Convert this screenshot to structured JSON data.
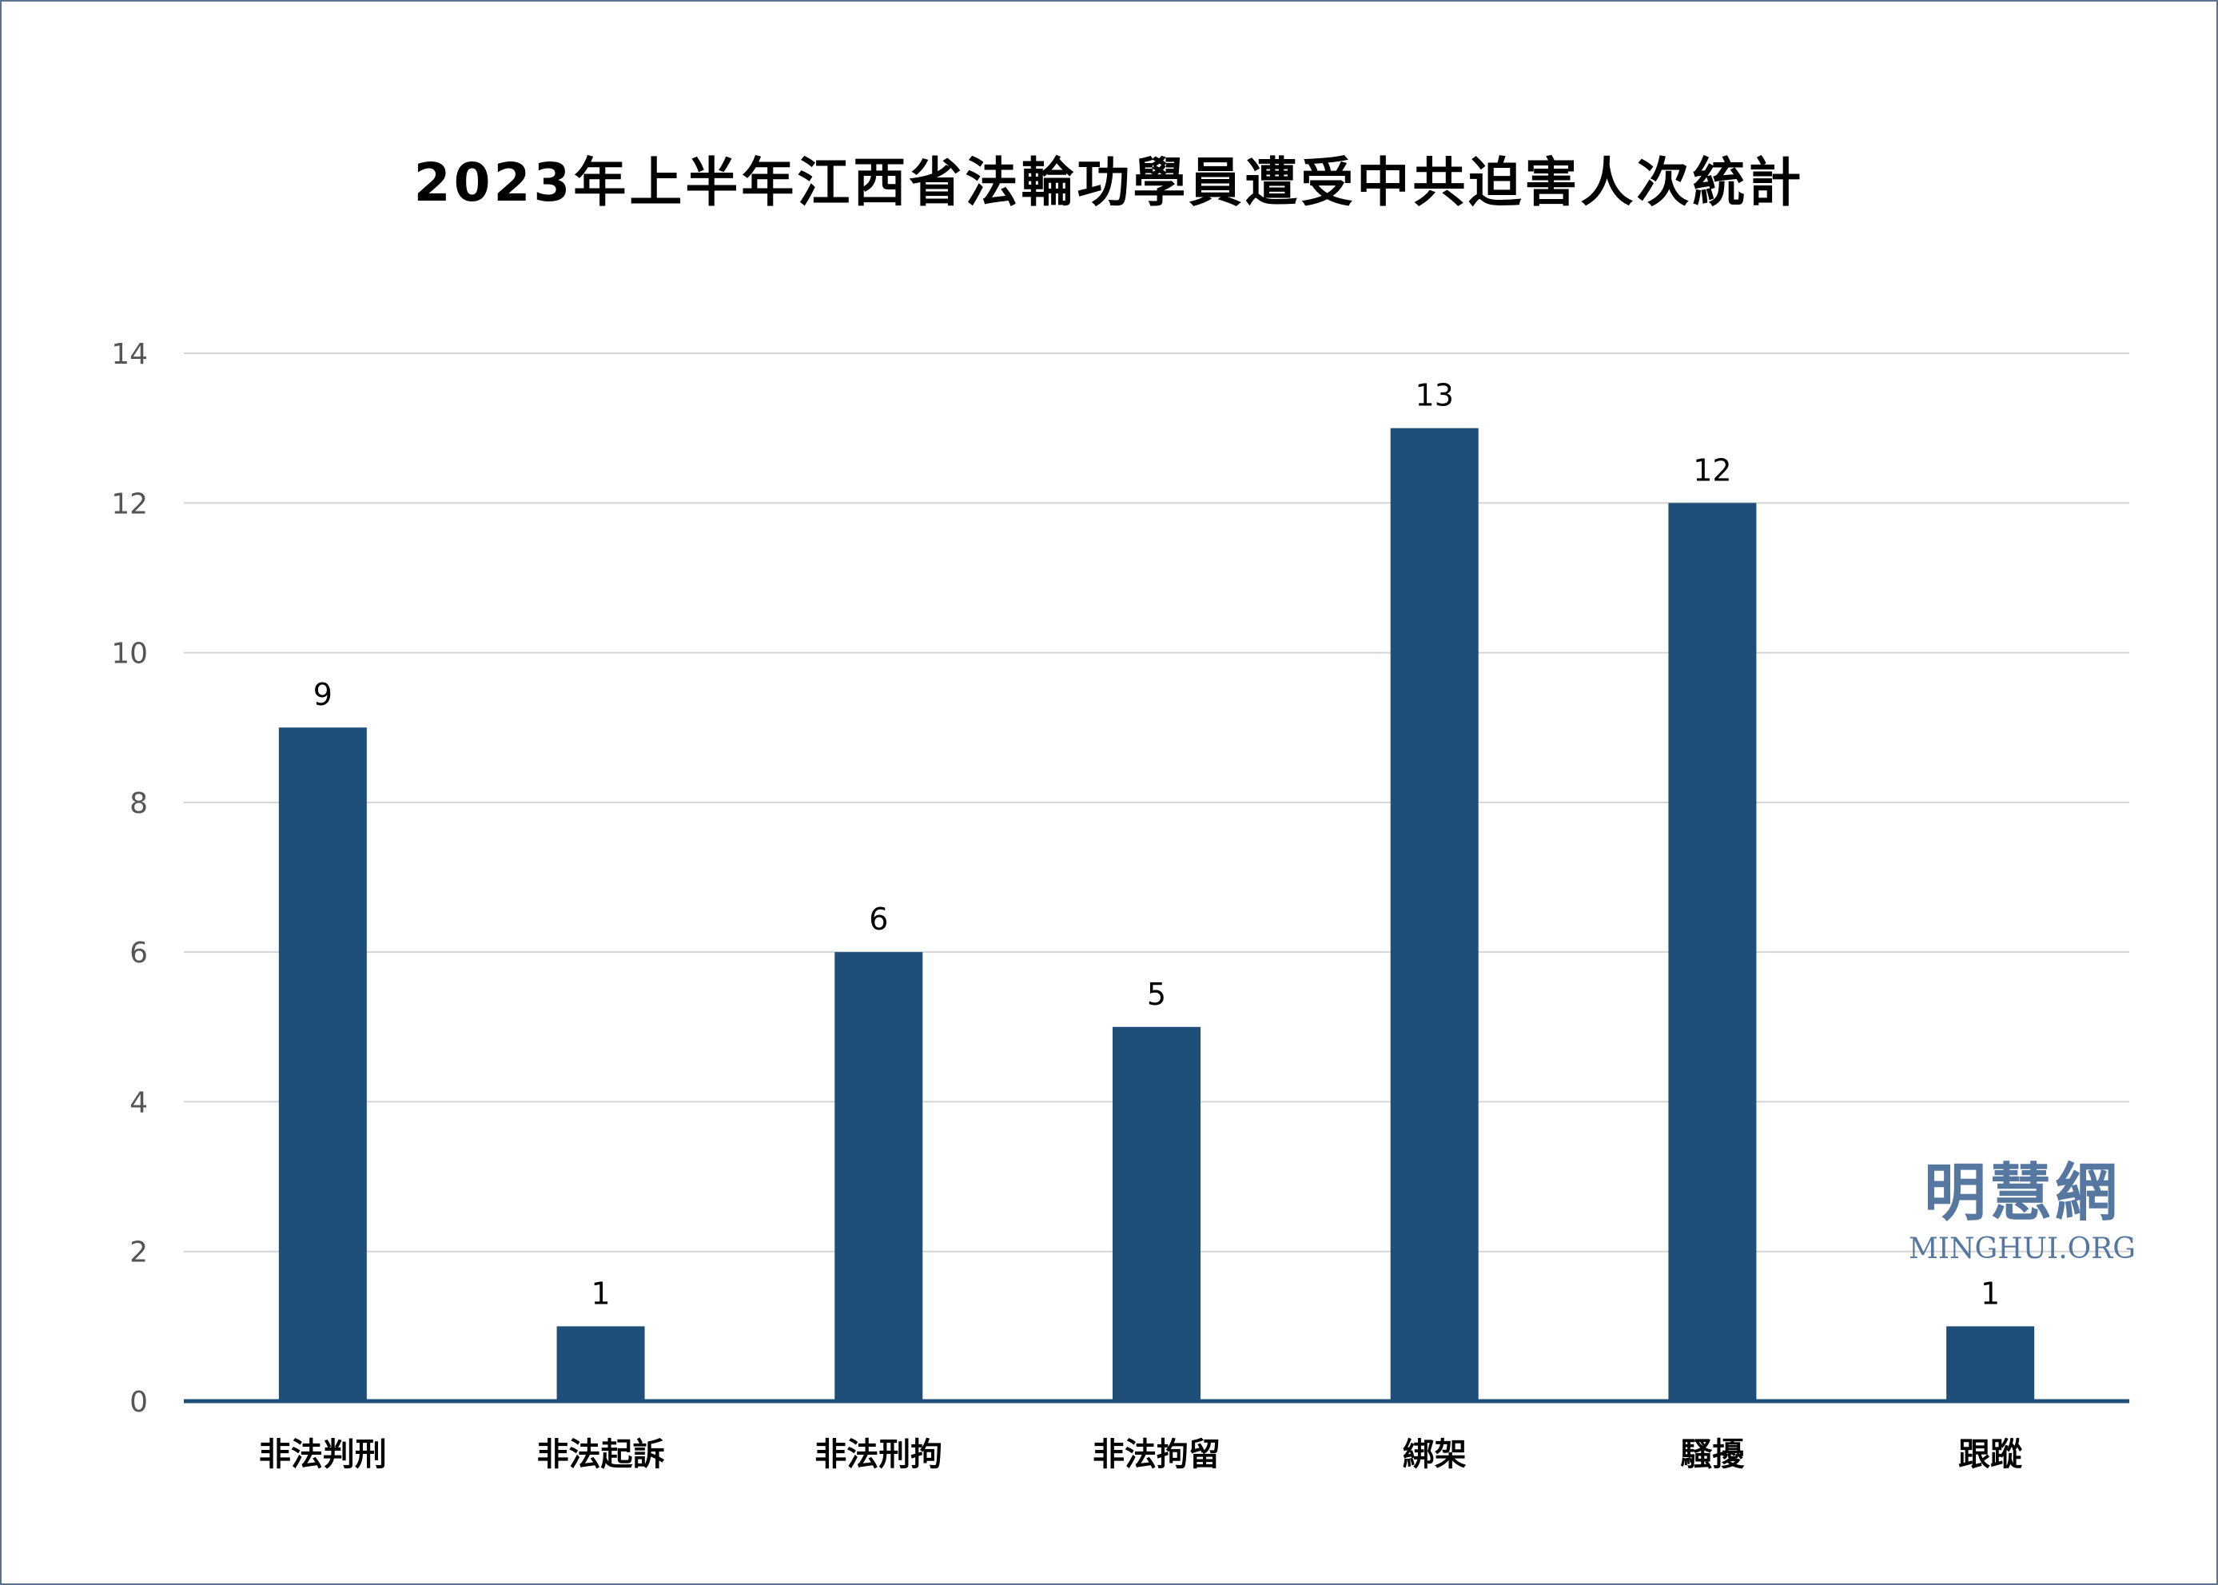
{
  "chart_data": {
    "type": "bar",
    "title": "2023年上半年江西省法輪功學員遭受中共迫害人次統計",
    "categories": [
      "非法判刑",
      "非法起訴",
      "非法刑拘",
      "非法拘留",
      "綁架",
      "騷擾",
      "跟蹤"
    ],
    "values": [
      9,
      1,
      6,
      5,
      13,
      12,
      1
    ],
    "xlabel": "",
    "ylabel": "",
    "ylim": [
      0,
      14
    ],
    "yticks": [
      0,
      2,
      4,
      6,
      8,
      10,
      12,
      14
    ],
    "grid": true,
    "data_labels": true,
    "bar_color": "#1f4e79"
  },
  "watermark": {
    "cn": "明慧網",
    "en": "MINGHUI.ORG",
    "color": "#5577a0"
  }
}
